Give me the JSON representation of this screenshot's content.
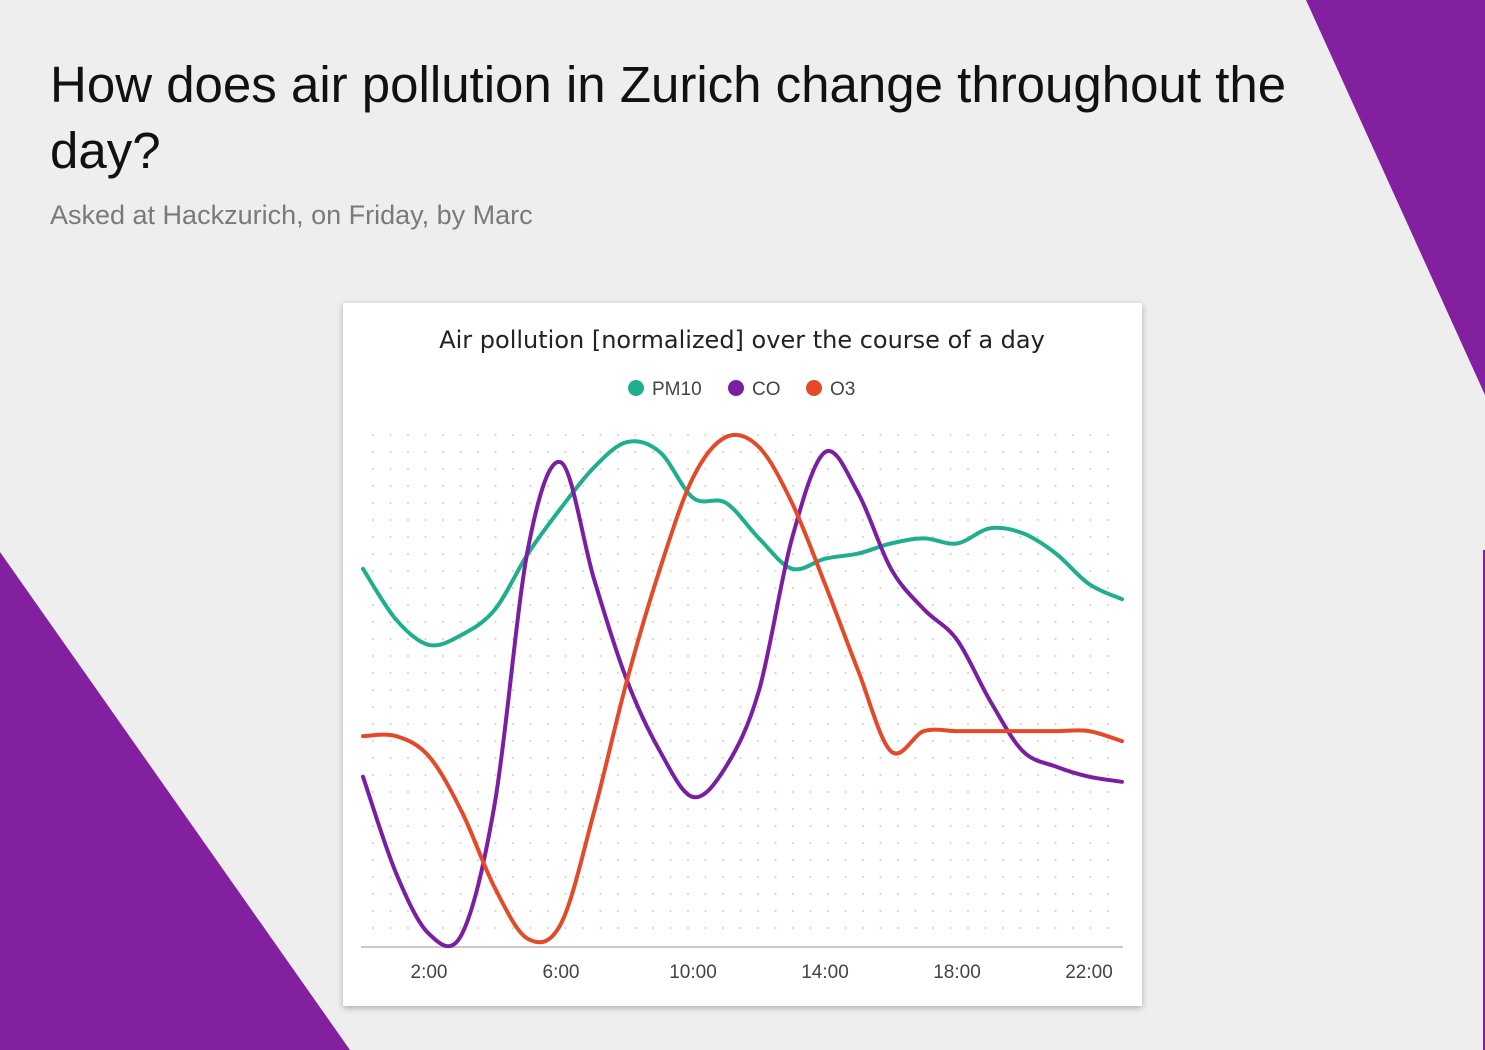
{
  "page": {
    "title": "How does air pollution in Zurich change throughout the day?",
    "subtitle": "Asked at Hackzurich, on Friday, by Marc"
  },
  "colors": {
    "background": "#eeeeee",
    "accent": "#8220a0",
    "pm10": "#1fae8e",
    "co": "#7b1fa2",
    "o3": "#e24a2a"
  },
  "chart_data": {
    "type": "line",
    "title": "Air pollution [normalized] over the course of a day",
    "xlabel": "",
    "ylabel": "",
    "smooth": true,
    "grid": "dotted",
    "legend_position": "top",
    "x": [
      0,
      1,
      2,
      3,
      4,
      5,
      6,
      7,
      8,
      9,
      10,
      11,
      12,
      13,
      14,
      15,
      16,
      17,
      18,
      19,
      20,
      21,
      22,
      23
    ],
    "x_ticks": [
      {
        "value": 2,
        "label": "2:00"
      },
      {
        "value": 6,
        "label": "6:00"
      },
      {
        "value": 10,
        "label": "10:00"
      },
      {
        "value": 14,
        "label": "14:00"
      },
      {
        "value": 18,
        "label": "18:00"
      },
      {
        "value": 22,
        "label": "22:00"
      }
    ],
    "xlim": [
      0,
      23
    ],
    "ylim": [
      0,
      1
    ],
    "series": [
      {
        "name": "PM10",
        "color": "#1fae8e",
        "values": [
          0.74,
          0.64,
          0.59,
          0.61,
          0.66,
          0.77,
          0.86,
          0.94,
          0.99,
          0.97,
          0.88,
          0.87,
          0.8,
          0.74,
          0.76,
          0.77,
          0.79,
          0.8,
          0.79,
          0.82,
          0.81,
          0.77,
          0.71,
          0.68
        ]
      },
      {
        "name": "CO",
        "color": "#7b1fa2",
        "values": [
          0.33,
          0.14,
          0.02,
          0.02,
          0.28,
          0.78,
          0.95,
          0.72,
          0.52,
          0.38,
          0.29,
          0.35,
          0.5,
          0.8,
          0.97,
          0.89,
          0.74,
          0.66,
          0.6,
          0.48,
          0.38,
          0.35,
          0.33,
          0.32
        ]
      },
      {
        "name": "O3",
        "color": "#e24a2a",
        "values": [
          0.41,
          0.41,
          0.37,
          0.26,
          0.11,
          0.01,
          0.04,
          0.26,
          0.52,
          0.74,
          0.92,
          1.0,
          0.98,
          0.87,
          0.71,
          0.54,
          0.38,
          0.42,
          0.42,
          0.42,
          0.42,
          0.42,
          0.42,
          0.4
        ]
      }
    ]
  }
}
